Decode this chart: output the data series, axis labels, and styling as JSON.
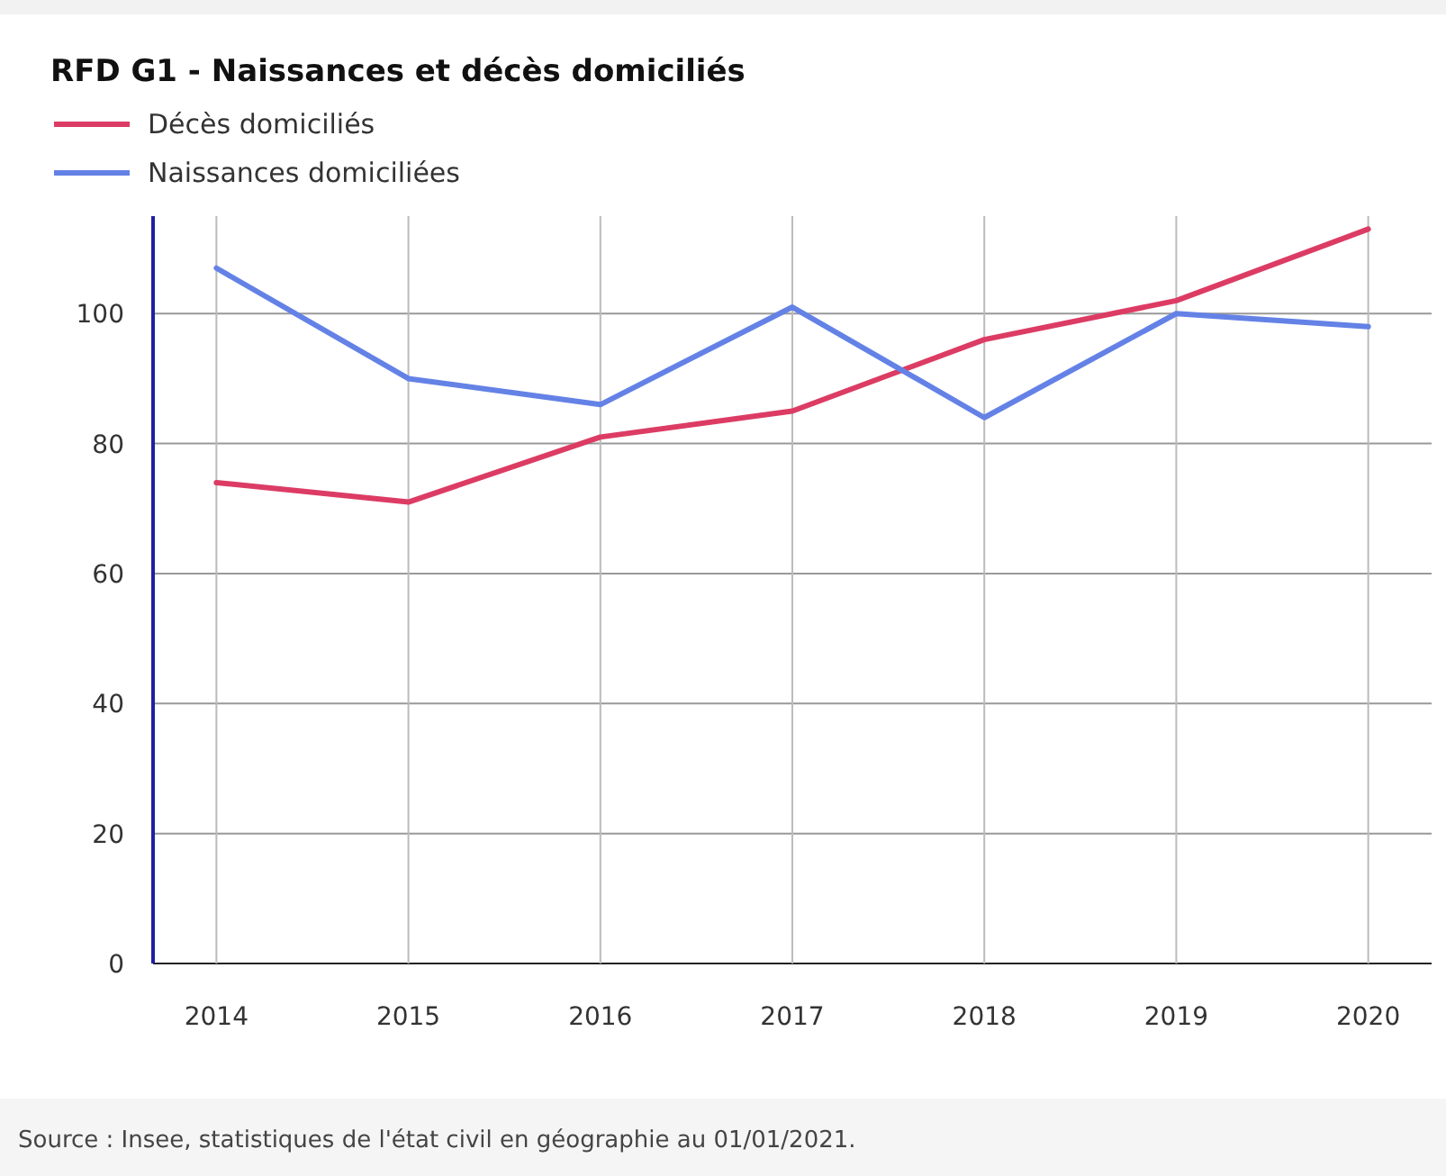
{
  "chart_data": {
    "type": "line",
    "title": "RFD G1 - Naissances et décès domiciliés",
    "categories": [
      "2014",
      "2015",
      "2016",
      "2017",
      "2018",
      "2019",
      "2020"
    ],
    "series": [
      {
        "name": "Décès domiciliés",
        "color": "#dc3c64",
        "values": [
          74,
          71,
          81,
          85,
          96,
          102,
          113
        ]
      },
      {
        "name": "Naissances domiciliées",
        "color": "#6482e6",
        "values": [
          107,
          90,
          86,
          101,
          84,
          100,
          98
        ]
      }
    ],
    "ylim": [
      0,
      115
    ],
    "yticks": [
      0,
      20,
      40,
      60,
      80,
      100
    ],
    "grid": true,
    "legend": "top left",
    "annotations": [
      "Source : Insee, statistiques de l'état civil en géographie au 01/01/2021."
    ]
  }
}
